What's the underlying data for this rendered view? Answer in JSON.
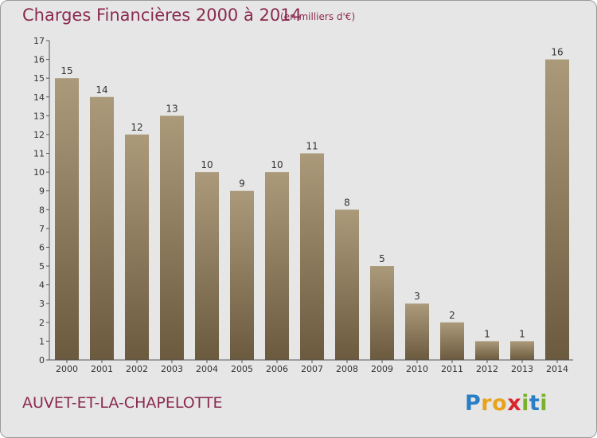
{
  "header": {
    "title": "Charges Financières 2000 à 2014",
    "subtitle": "(en milliers d'€)"
  },
  "footer": {
    "commune": "AUVET-ET-LA-CHAPELOTTE",
    "logo_letters": [
      "P",
      "r",
      "o",
      "x",
      "i",
      "t",
      "i"
    ],
    "logo_colors": [
      "#2a7fc4",
      "#e8a21c",
      "#e8a21c",
      "#d8262d",
      "#7ab22e",
      "#2a7fc4",
      "#7ab22e"
    ]
  },
  "chart_data": {
    "type": "bar",
    "title": "Charges Financières 2000 à 2014",
    "subtitle": "(en milliers d'€)",
    "xlabel": "",
    "ylabel": "",
    "categories": [
      "2000",
      "2001",
      "2002",
      "2003",
      "2004",
      "2005",
      "2006",
      "2007",
      "2008",
      "2009",
      "2010",
      "2011",
      "2012",
      "2013",
      "2014"
    ],
    "values": [
      15,
      14,
      12,
      13,
      10,
      9,
      10,
      11,
      8,
      5,
      3,
      2,
      1,
      1,
      16
    ],
    "data_labels": [
      "15",
      "14",
      "12",
      "13",
      "10",
      "9",
      "10",
      "11",
      "8",
      "5",
      "3",
      "2",
      "1",
      "1",
      "16"
    ],
    "ylim": [
      0,
      17
    ],
    "yticks": [
      "0",
      "1",
      "2",
      "3",
      "4",
      "5",
      "6",
      "7",
      "8",
      "9",
      "10",
      "11",
      "12",
      "13",
      "14",
      "15",
      "16",
      "17"
    ],
    "grid": false,
    "legend": "none",
    "colors": {
      "bar_top": "#ab9a7a",
      "bar_bottom": "#6b5a3e",
      "axis": "#555555",
      "text": "#333333",
      "accent": "#8a2a50"
    }
  }
}
